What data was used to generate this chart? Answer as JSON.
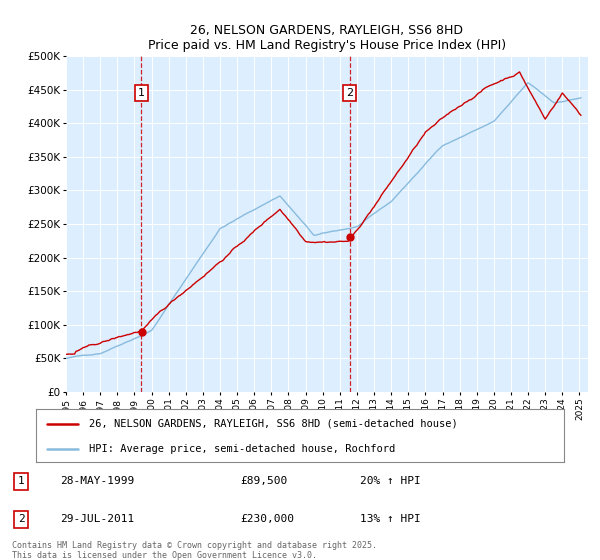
{
  "title": "26, NELSON GARDENS, RAYLEIGH, SS6 8HD",
  "subtitle": "Price paid vs. HM Land Registry's House Price Index (HPI)",
  "ylim": [
    0,
    500000
  ],
  "yticks": [
    0,
    50000,
    100000,
    150000,
    200000,
    250000,
    300000,
    350000,
    400000,
    450000,
    500000
  ],
  "ytick_labels": [
    "£0",
    "£50K",
    "£100K",
    "£150K",
    "£200K",
    "£250K",
    "£300K",
    "£350K",
    "£400K",
    "£450K",
    "£500K"
  ],
  "background_color": "#ddeeff",
  "grid_color": "#ffffff",
  "red_color": "#cc0000",
  "blue_color": "#88bbdd",
  "marker1_year": 1999.41,
  "marker1_value": 89500,
  "marker2_year": 2011.57,
  "marker2_value": 230000,
  "legend_label_red": "26, NELSON GARDENS, RAYLEIGH, SS6 8HD (semi-detached house)",
  "legend_label_blue": "HPI: Average price, semi-detached house, Rochford",
  "annotation1": [
    "1",
    "28-MAY-1999",
    "£89,500",
    "20% ↑ HPI"
  ],
  "annotation2": [
    "2",
    "29-JUL-2011",
    "£230,000",
    "13% ↑ HPI"
  ],
  "footer": "Contains HM Land Registry data © Crown copyright and database right 2025.\nThis data is licensed under the Open Government Licence v3.0.",
  "xtick_years": [
    1995,
    1996,
    1997,
    1998,
    1999,
    2000,
    2001,
    2002,
    2003,
    2004,
    2005,
    2006,
    2007,
    2008,
    2009,
    2010,
    2011,
    2012,
    2013,
    2014,
    2015,
    2016,
    2017,
    2018,
    2019,
    2020,
    2021,
    2022,
    2023,
    2024,
    2025
  ]
}
